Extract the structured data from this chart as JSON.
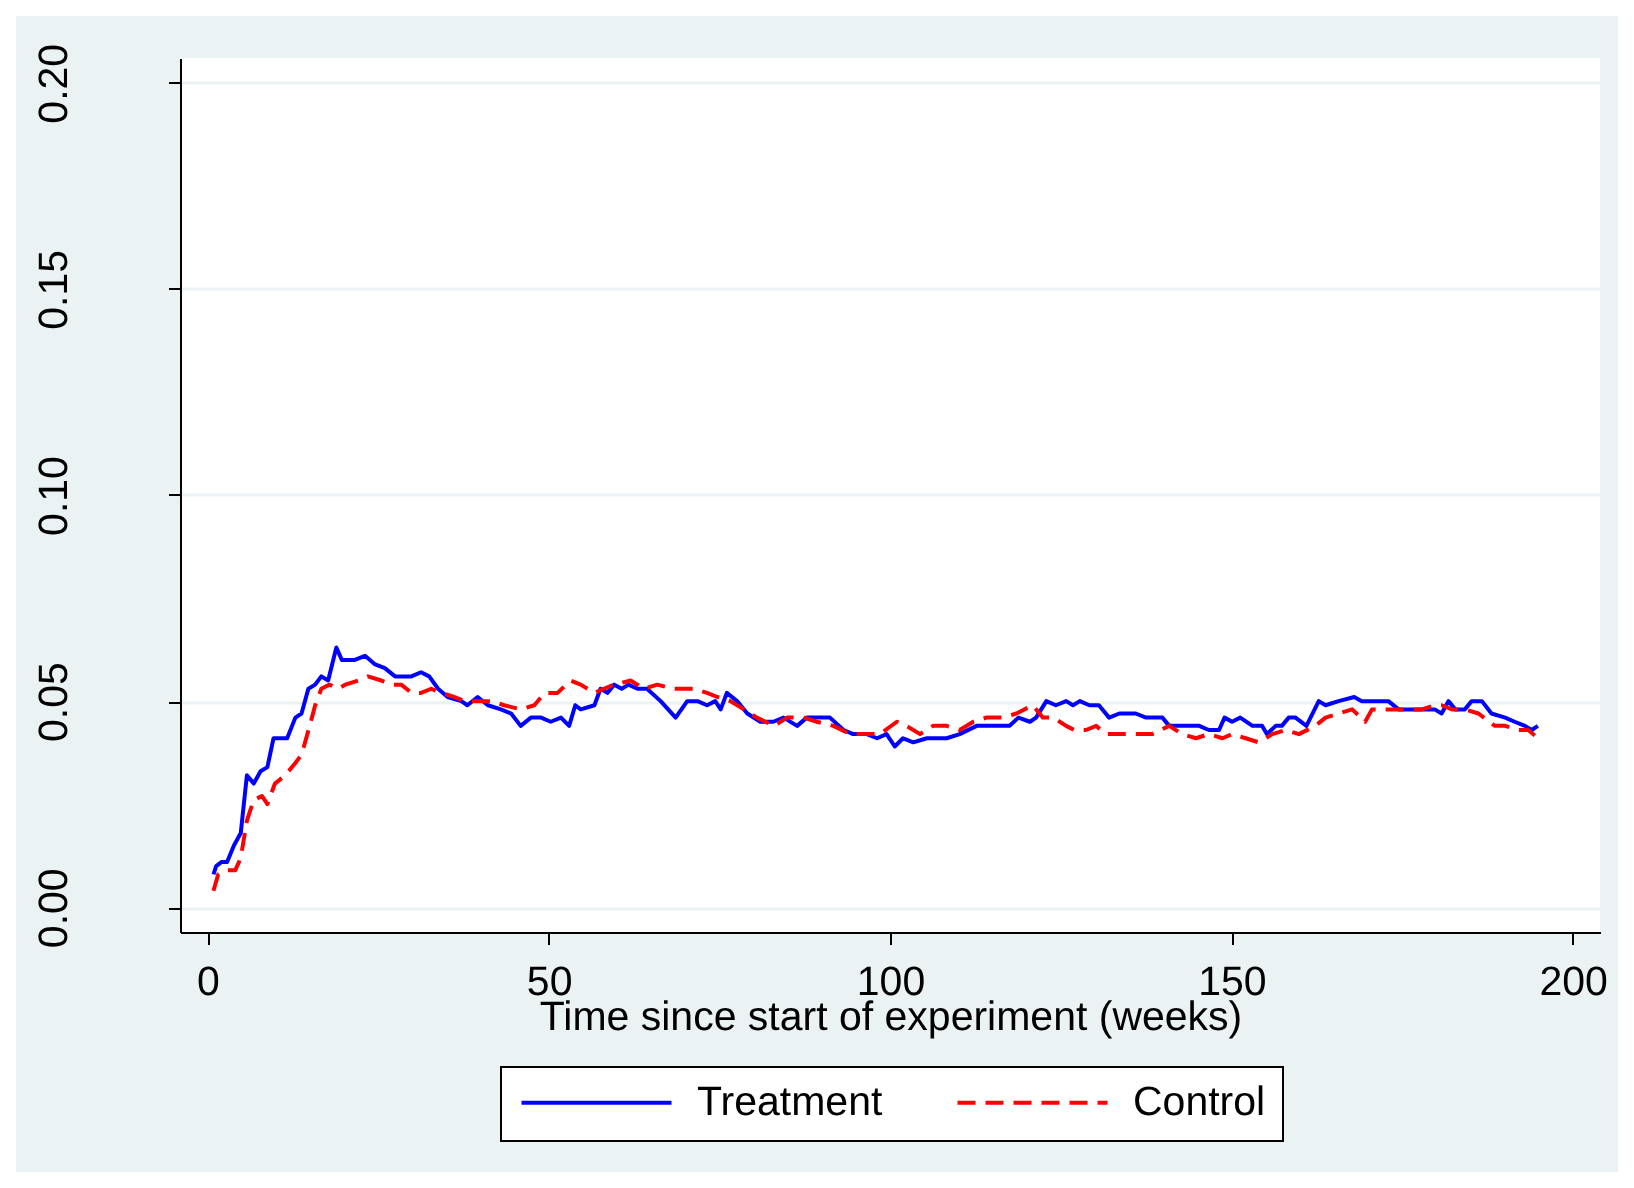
{
  "chart_data": {
    "type": "line",
    "xlabel": "Time since start of experiment (weeks)",
    "xlim": [
      -4,
      204
    ],
    "xticks": [
      0,
      50,
      100,
      150,
      200
    ],
    "ylim": [
      -0.006,
      0.206
    ],
    "yticks": [
      {
        "value": 0,
        "label": "0.00"
      },
      {
        "value": 0.05,
        "label": "0.05"
      },
      {
        "value": 0.1,
        "label": "0.10"
      },
      {
        "value": 0.15,
        "label": "0.15"
      },
      {
        "value": 0.2,
        "label": "0.20"
      }
    ],
    "grid": "y",
    "legend": "bottom",
    "series": [
      {
        "name": "Treatment",
        "color": "#0000ff",
        "line_style": "solid",
        "x": [
          0.9,
          1.3,
          2.1,
          2.9,
          3.9,
          4.9,
          5.8,
          6.8,
          7.8,
          8.8,
          9.7,
          11.7,
          12.9,
          13.8,
          14.8,
          15.8,
          16.7,
          17.7,
          18.9,
          19.7,
          21.6,
          23.1,
          24.5,
          26,
          27.5,
          29.9,
          31.3,
          32.5,
          33.8,
          35.2,
          37.2,
          38.1,
          39.6,
          41.1,
          43,
          44.5,
          45.9,
          47.4,
          48.9,
          50.3,
          51.8,
          53,
          53.9,
          54.7,
          56.7,
          57.6,
          58.6,
          59.6,
          60.7,
          61.7,
          63,
          64.4,
          66.4,
          68.6,
          70.3,
          71.8,
          73.2,
          74.4,
          75.2,
          76.1,
          77.6,
          79.1,
          81,
          82.9,
          84.4,
          86.4,
          87.8,
          90.3,
          91.2,
          93.2,
          94.6,
          96.6,
          98.1,
          99.5,
          100.7,
          101.9,
          103.4,
          105.4,
          108.3,
          110.2,
          112.7,
          114.6,
          117.5,
          118.8,
          120.5,
          121.4,
          122.9,
          124.3,
          125.8,
          126.8,
          127.8,
          129.2,
          130.6,
          132.1,
          133.6,
          136,
          137.5,
          139.9,
          140.9,
          143.8,
          145.3,
          146.7,
          148.2,
          149,
          150.1,
          151.3,
          153.1,
          154.5,
          155.2,
          156.5,
          157.4,
          158.4,
          159.4,
          161,
          162.8,
          163.8,
          165.7,
          168,
          169.1,
          171.6,
          173,
          174.5,
          178.4,
          179.8,
          180.8,
          181.8,
          182.8,
          184.2,
          185.2,
          186.7,
          188.1,
          190.1,
          191.5,
          193,
          194,
          194.9
        ],
        "values": [
          0.008,
          0.01,
          0.011,
          0.011,
          0.015,
          0.018,
          0.032,
          0.03,
          0.033,
          0.034,
          0.041,
          0.041,
          0.046,
          0.047,
          0.053,
          0.054,
          0.056,
          0.055,
          0.063,
          0.06,
          0.06,
          0.061,
          0.059,
          0.058,
          0.056,
          0.056,
          0.057,
          0.056,
          0.053,
          0.051,
          0.05,
          0.049,
          0.051,
          0.049,
          0.048,
          0.047,
          0.044,
          0.046,
          0.046,
          0.045,
          0.046,
          0.044,
          0.049,
          0.048,
          0.049,
          0.053,
          0.052,
          0.054,
          0.053,
          0.054,
          0.053,
          0.053,
          0.05,
          0.046,
          0.05,
          0.05,
          0.049,
          0.05,
          0.048,
          0.052,
          0.05,
          0.047,
          0.045,
          0.045,
          0.046,
          0.044,
          0.046,
          0.046,
          0.046,
          0.043,
          0.042,
          0.042,
          0.041,
          0.042,
          0.039,
          0.041,
          0.04,
          0.041,
          0.041,
          0.042,
          0.044,
          0.044,
          0.044,
          0.046,
          0.045,
          0.046,
          0.05,
          0.049,
          0.05,
          0.049,
          0.05,
          0.049,
          0.049,
          0.046,
          0.047,
          0.047,
          0.046,
          0.046,
          0.044,
          0.044,
          0.044,
          0.043,
          0.043,
          0.046,
          0.045,
          0.046,
          0.044,
          0.044,
          0.042,
          0.044,
          0.044,
          0.046,
          0.046,
          0.044,
          0.05,
          0.049,
          0.05,
          0.051,
          0.05,
          0.05,
          0.05,
          0.048,
          0.048,
          0.048,
          0.047,
          0.05,
          0.048,
          0.048,
          0.05,
          0.05,
          0.047,
          0.046,
          0.045,
          0.044,
          0.043,
          0.044
        ]
      },
      {
        "name": "Control",
        "color": "#ff0000",
        "line_style": "dashed",
        "x": [
          0.9,
          1.6,
          2.6,
          4.1,
          4.9,
          5.8,
          6.8,
          8,
          8.8,
          9.9,
          11.4,
          12.9,
          13.8,
          15,
          15.8,
          16.7,
          17.9,
          19.2,
          20.2,
          22.1,
          23.5,
          25.5,
          27.2,
          28.4,
          29.9,
          31.3,
          32.8,
          34.3,
          36.2,
          37.7,
          39.6,
          41.6,
          43.5,
          45.9,
          47.9,
          49.4,
          51.3,
          53.2,
          54.7,
          56.7,
          58.1,
          59.6,
          62,
          64,
          65.9,
          68.3,
          71.3,
          73.2,
          74.7,
          76.6,
          78.6,
          80.5,
          83,
          84.9,
          87.3,
          89.3,
          91.7,
          94.2,
          96.1,
          98.5,
          101,
          102.4,
          104.4,
          106.3,
          108.3,
          110.2,
          112.2,
          114.1,
          116.6,
          118.5,
          120.9,
          122.4,
          123.9,
          125.8,
          127,
          128.7,
          130.2,
          131.6,
          133.6,
          136,
          138.4,
          140.9,
          142.8,
          144.8,
          146.7,
          148.7,
          150.1,
          152.1,
          154,
          156,
          157.9,
          159.9,
          162.3,
          163.8,
          165.7,
          167.7,
          169.6,
          170.6,
          172,
          174,
          175.9,
          177.9,
          179.8,
          180.8,
          182.3,
          184.2,
          186.2,
          188.6,
          190.1,
          192,
          193.5,
          194.9
        ],
        "values": [
          0.004,
          0.008,
          0.009,
          0.009,
          0.012,
          0.021,
          0.026,
          0.027,
          0.025,
          0.03,
          0.032,
          0.035,
          0.037,
          0.044,
          0.049,
          0.053,
          0.054,
          0.053,
          0.054,
          0.055,
          0.056,
          0.055,
          0.054,
          0.054,
          0.052,
          0.052,
          0.053,
          0.052,
          0.051,
          0.05,
          0.05,
          0.05,
          0.049,
          0.048,
          0.049,
          0.052,
          0.052,
          0.055,
          0.054,
          0.052,
          0.053,
          0.054,
          0.055,
          0.053,
          0.054,
          0.053,
          0.053,
          0.052,
          0.051,
          0.05,
          0.048,
          0.046,
          0.044,
          0.046,
          0.046,
          0.045,
          0.044,
          0.042,
          0.042,
          0.042,
          0.045,
          0.044,
          0.042,
          0.044,
          0.044,
          0.043,
          0.045,
          0.046,
          0.046,
          0.047,
          0.049,
          0.046,
          0.046,
          0.044,
          0.043,
          0.043,
          0.044,
          0.042,
          0.042,
          0.042,
          0.042,
          0.044,
          0.042,
          0.041,
          0.042,
          0.041,
          0.042,
          0.041,
          0.04,
          0.042,
          0.043,
          0.042,
          0.044,
          0.046,
          0.047,
          0.048,
          0.045,
          0.048,
          0.048,
          0.048,
          0.048,
          0.048,
          0.049,
          0.049,
          0.048,
          0.048,
          0.047,
          0.044,
          0.044,
          0.043,
          0.043,
          0.041
        ]
      }
    ]
  }
}
